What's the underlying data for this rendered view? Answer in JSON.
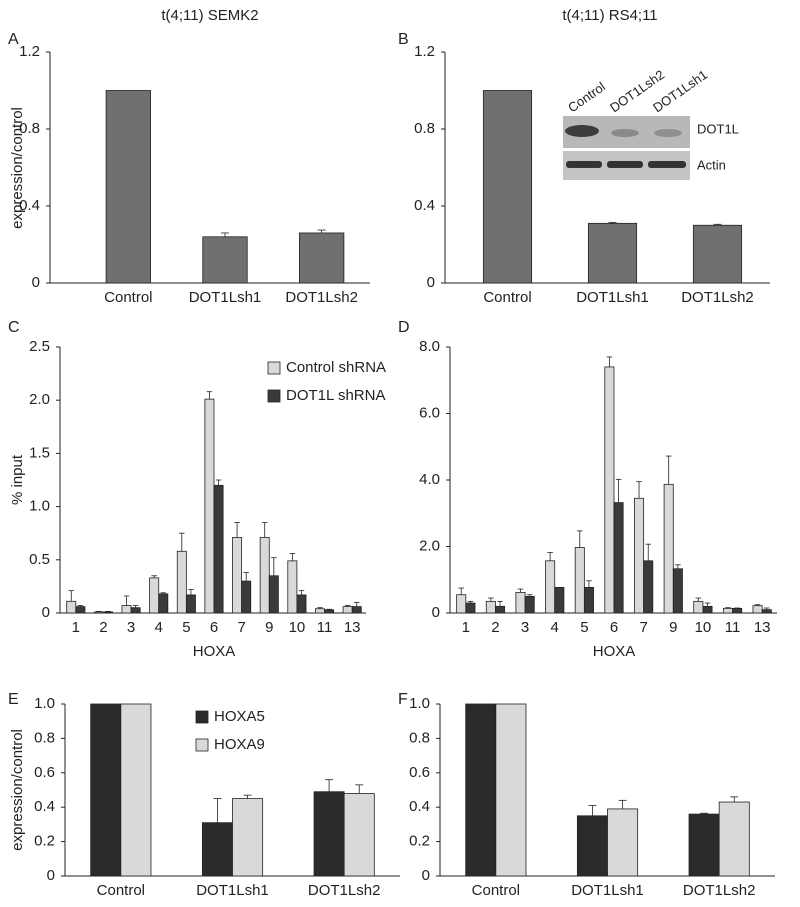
{
  "chart_data": [
    {
      "type": "bar",
      "panel": "A",
      "title": "t(4;11) SEMK2",
      "ylabel": "expression/control",
      "categories": [
        "Control",
        "DOT1Lsh1",
        "DOT1Lsh2"
      ],
      "series": [
        {
          "color": "#707070",
          "values": [
            1.0,
            0.24,
            0.26
          ],
          "errors": [
            null,
            0.02,
            0.015
          ]
        }
      ],
      "ylim": [
        0,
        1.2
      ],
      "yticks": [
        0,
        0.4,
        0.8,
        1.2
      ]
    },
    {
      "type": "bar",
      "panel": "B",
      "title": "t(4;11) RS4;11",
      "categories": [
        "Control",
        "DOT1Lsh1",
        "DOT1Lsh2"
      ],
      "series": [
        {
          "color": "#707070",
          "values": [
            1.0,
            0.31,
            0.3
          ],
          "errors": [
            null,
            0.005,
            0.005
          ]
        }
      ],
      "ylim": [
        0,
        1.2
      ],
      "yticks": [
        0,
        0.4,
        0.8,
        1.2
      ],
      "inset": {
        "lanes": [
          "Control",
          "DOT1Lsh2",
          "DOT1Lsh1"
        ],
        "rows": [
          "DOT1L",
          "Actin"
        ]
      }
    },
    {
      "type": "bar",
      "panel": "C",
      "ylabel": "% input",
      "xlabel": "HOXA",
      "categories": [
        "1",
        "2",
        "3",
        "4",
        "5",
        "6",
        "7",
        "9",
        "10",
        "11",
        "13"
      ],
      "series": [
        {
          "name": "Control shRNA",
          "color": "#d9d9d9",
          "values": [
            0.11,
            0.01,
            0.07,
            0.33,
            0.58,
            2.01,
            0.71,
            0.71,
            0.49,
            0.04,
            0.06
          ],
          "errors": [
            0.1,
            0.005,
            0.09,
            0.02,
            0.17,
            0.07,
            0.14,
            0.14,
            0.07,
            0.01,
            0.01
          ]
        },
        {
          "name": "DOT1L shRNA",
          "color": "#3a3a3a",
          "values": [
            0.06,
            0.01,
            0.05,
            0.18,
            0.17,
            1.2,
            0.3,
            0.35,
            0.17,
            0.03,
            0.06
          ],
          "errors": [
            0.01,
            0.005,
            0.02,
            0.01,
            0.05,
            0.05,
            0.08,
            0.17,
            0.04,
            0.005,
            0.04
          ]
        }
      ],
      "ylim": [
        0,
        2.5
      ],
      "yticks": [
        0,
        0.5,
        {
          "value": 1,
          "label": "1.0"
        },
        1.5,
        {
          "value": 2,
          "label": "2.0"
        },
        2.5
      ]
    },
    {
      "type": "bar",
      "panel": "D",
      "xlabel": "HOXA",
      "categories": [
        "1",
        "2",
        "3",
        "4",
        "5",
        "6",
        "7",
        "9",
        "10",
        "11",
        "13"
      ],
      "series": [
        {
          "color": "#d9d9d9",
          "values": [
            0.55,
            0.35,
            0.62,
            1.57,
            1.97,
            7.4,
            3.45,
            3.87,
            0.35,
            0.14,
            0.22
          ],
          "errors": [
            0.2,
            0.1,
            0.1,
            0.25,
            0.5,
            0.3,
            0.5,
            0.85,
            0.1,
            0.02,
            0.03
          ]
        },
        {
          "color": "#3a3a3a",
          "values": [
            0.3,
            0.2,
            0.5,
            0.77,
            0.77,
            3.32,
            1.57,
            1.33,
            0.2,
            0.14,
            0.1
          ],
          "errors": [
            0.05,
            0.15,
            0.05,
            0,
            0.2,
            0.7,
            0.5,
            0.12,
            0.1,
            0.01,
            0.05
          ]
        }
      ],
      "ylim": [
        0,
        8
      ],
      "yticks": [
        0,
        {
          "value": 2,
          "label": "2.0"
        },
        {
          "value": 4,
          "label": "4.0"
        },
        {
          "value": 6,
          "label": "6.0"
        },
        {
          "value": 8,
          "label": "8.0"
        }
      ]
    },
    {
      "type": "bar",
      "panel": "E",
      "ylabel": "expression/control",
      "categories": [
        "Control",
        "DOT1Lsh1",
        "DOT1Lsh2"
      ],
      "series": [
        {
          "name": "HOXA5",
          "color": "#2b2b2b",
          "values": [
            1.0,
            0.31,
            0.49
          ],
          "errors": [
            null,
            0.14,
            0.07
          ]
        },
        {
          "name": "HOXA9",
          "color": "#d9d9d9",
          "values": [
            1.0,
            0.45,
            0.48
          ],
          "errors": [
            null,
            0.02,
            0.05
          ]
        }
      ],
      "ylim": [
        0,
        1
      ],
      "yticks": [
        0,
        0.2,
        0.4,
        0.6,
        0.8,
        {
          "value": 1,
          "label": "1.0"
        }
      ]
    },
    {
      "type": "bar",
      "panel": "F",
      "categories": [
        "Control",
        "DOT1Lsh1",
        "DOT1Lsh2"
      ],
      "series": [
        {
          "color": "#2b2b2b",
          "values": [
            1.0,
            0.35,
            0.36
          ],
          "errors": [
            null,
            0.06,
            0.005
          ]
        },
        {
          "color": "#d9d9d9",
          "values": [
            1.0,
            0.39,
            0.43
          ],
          "errors": [
            null,
            0.05,
            0.03
          ]
        }
      ],
      "ylim": [
        0,
        1
      ],
      "yticks": [
        0,
        0.2,
        0.4,
        0.6,
        0.8,
        {
          "value": 1,
          "label": "1.0"
        }
      ]
    }
  ]
}
